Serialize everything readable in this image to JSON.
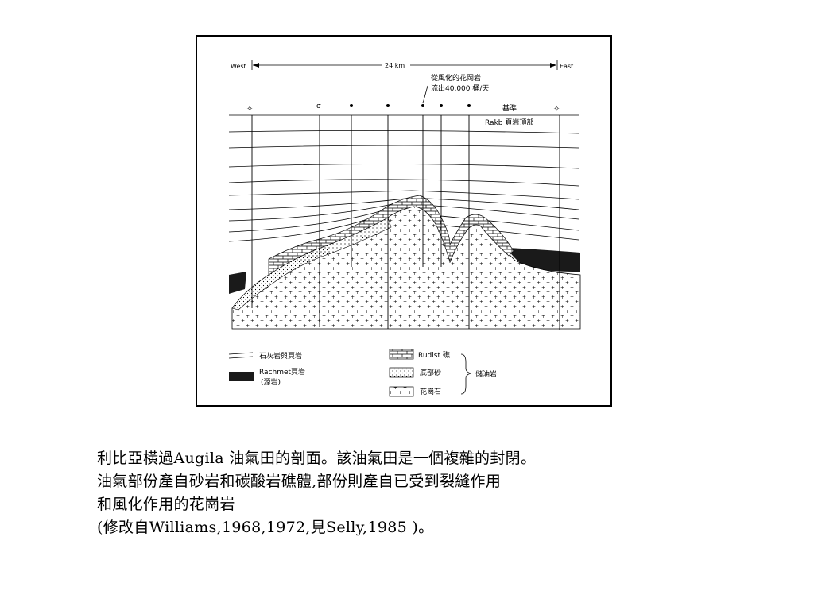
{
  "figure": {
    "direction_west": "West",
    "direction_east": "East",
    "distance": "24 km",
    "annotation_line1": "從風化的花岡岩",
    "annotation_line2": "流出40,000 桶/天",
    "datum_label": "基準",
    "top_label": "Rakb 頁岩頂部",
    "legend": {
      "limestone_shale": "石灰岩與頁岩",
      "rachmet_line1": "Rachmet頁岩",
      "rachmet_line2": "(源岩)",
      "rudist": "Rudist 礁",
      "basal_sand": "底部砂",
      "granite": "花崗石",
      "reservoir": "儲油岩"
    }
  },
  "caption": {
    "line1": "利比亞橫過Augila 油氣田的剖面。該油氣田是一個複雜的封閉。",
    "line2": "油氣部份產自砂岩和碳酸岩礁體,部份則產自已受到裂縫作用",
    "line3": "和風化作用的花崗岩",
    "line4": "(修改自Williams,1968,1972,見Selly,1985 )。"
  }
}
